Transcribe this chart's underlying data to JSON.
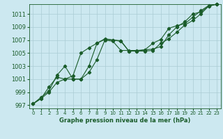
{
  "xlabel": "Graphe pression niveau de la mer (hPa)",
  "ylim": [
    996.5,
    1012.5
  ],
  "xlim": [
    -0.5,
    23.5
  ],
  "yticks": [
    997,
    999,
    1001,
    1003,
    1005,
    1007,
    1009,
    1011
  ],
  "xticks": [
    0,
    1,
    2,
    3,
    4,
    5,
    6,
    7,
    8,
    9,
    10,
    11,
    12,
    13,
    14,
    15,
    16,
    17,
    18,
    19,
    20,
    21,
    22,
    23
  ],
  "bg_color": "#cce8f0",
  "line_color": "#1a5c2a",
  "grid_color": "#aaccd4",
  "series1": [
    997.2,
    998.0,
    999.0,
    1000.5,
    1001.0,
    1001.5,
    1005.0,
    1005.8,
    1006.5,
    1007.1,
    1007.0,
    1006.9,
    1005.3,
    1005.3,
    1005.3,
    1005.4,
    1006.5,
    1007.2,
    1008.2,
    1009.3,
    1010.0,
    1011.0,
    1012.2,
    1012.5
  ],
  "series2": [
    997.2,
    998.2,
    999.2,
    1001.6,
    1003.0,
    1001.0,
    1001.0,
    1002.0,
    1004.0,
    1007.0,
    1006.8,
    1005.4,
    1005.4,
    1005.4,
    1005.5,
    1005.6,
    1006.0,
    1007.8,
    1009.0,
    1009.8,
    1011.0,
    1011.3,
    1012.2,
    1012.5
  ],
  "series3": [
    997.2,
    998.0,
    999.8,
    1001.3,
    1001.0,
    1001.0,
    1001.0,
    1003.0,
    1006.5,
    1007.2,
    1007.0,
    1006.8,
    1005.3,
    1005.3,
    1005.5,
    1006.5,
    1007.1,
    1008.8,
    1009.2,
    1009.5,
    1010.5,
    1011.5,
    1012.3,
    1012.5
  ],
  "ytick_fontsize": 6.0,
  "xtick_fontsize": 5.0,
  "xlabel_fontsize": 6.0,
  "marker_size": 2.2,
  "line_width": 0.8
}
